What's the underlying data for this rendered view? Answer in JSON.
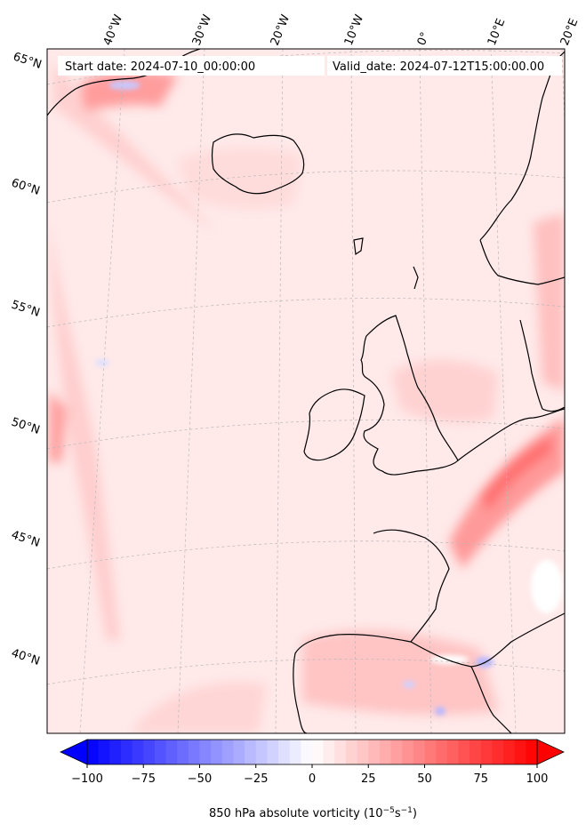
{
  "header": {
    "start_date": "Start date: 2024-07-10_00:00:00",
    "valid_date": "Valid_date: 2024-07-12T15:00:00.00"
  },
  "map": {
    "projection": "lambert-conformal",
    "longitude_labels": [
      "40°W",
      "30°W",
      "20°W",
      "10°W",
      "0°",
      "10°E",
      "20°E"
    ],
    "latitude_labels": [
      "65°N",
      "60°N",
      "55°N",
      "50°N",
      "45°N",
      "40°N"
    ],
    "field": "850 hPa absolute vorticity",
    "gridlines": true,
    "coastlines": true
  },
  "colorbar": {
    "ticks": [
      "−100",
      "−75",
      "−50",
      "−25",
      "0",
      "25",
      "50",
      "75",
      "100"
    ],
    "min": -100,
    "max": 100,
    "colormap": "bwr",
    "extend": "both",
    "label_text": "850 hPa absolute vorticity (10",
    "label_exp1": "−5",
    "label_mid": "s",
    "label_exp2": "−1",
    "label_end": ")"
  },
  "colors": {
    "negative": "#0000ff",
    "zero": "#ffffff",
    "positive": "#ff0000"
  }
}
